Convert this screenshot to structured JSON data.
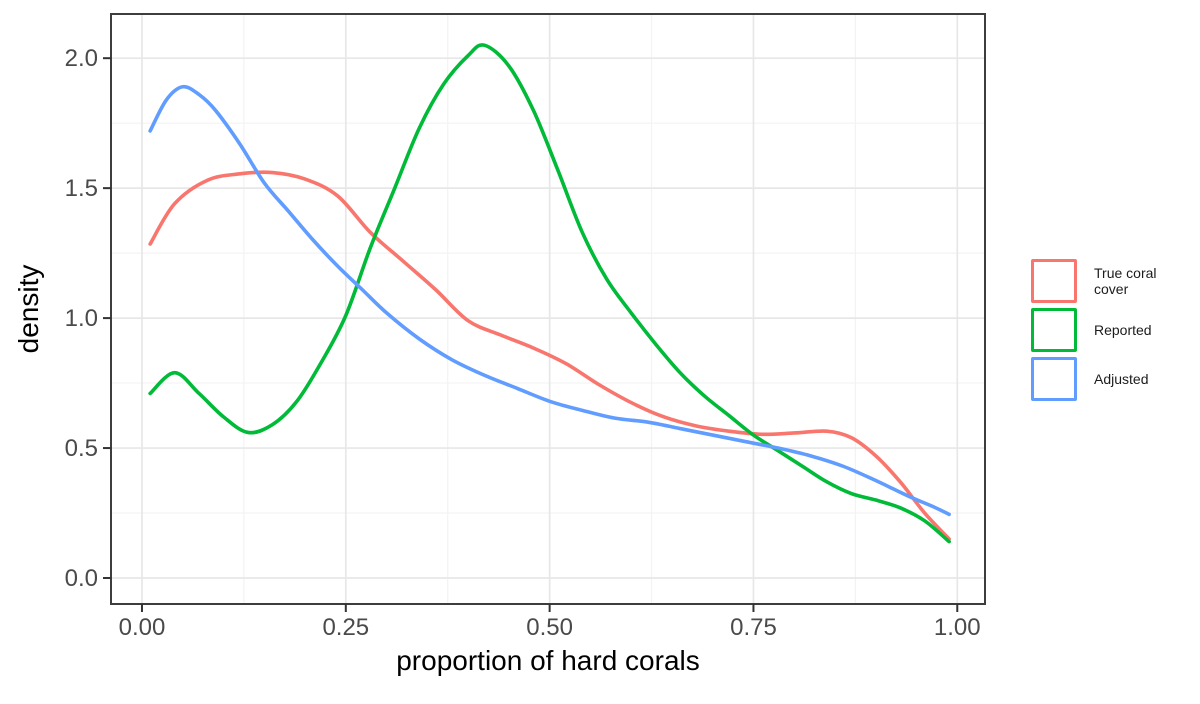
{
  "figure": {
    "background": "#ffffff",
    "panel": {
      "background": "#ffffff",
      "border_color": "#3d3d3d",
      "grid_major_color": "#e7e7e7",
      "grid_minor_color": "#f3f3f3",
      "tick_color": "#333333",
      "tick_label_color": "#4a4a4a",
      "axis_title_color": "#000000"
    }
  },
  "chart_data": {
    "type": "line",
    "subtype": "kernel-density",
    "title": "",
    "xlabel": "proportion of hard corals",
    "ylabel": "density",
    "xlim": [
      -0.038,
      1.034
    ],
    "ylim": [
      -0.1,
      2.17
    ],
    "grid": true,
    "legend_position": "right",
    "x_ticks": {
      "values": [
        0,
        0.25,
        0.5,
        0.75,
        1
      ],
      "labels": [
        "0.00",
        "0.25",
        "0.50",
        "0.75",
        "1.00"
      ]
    },
    "y_ticks": {
      "values": [
        0,
        0.5,
        1,
        1.5,
        2
      ],
      "labels": [
        "0.0",
        "0.5",
        "1.0",
        "1.5",
        "2.0"
      ]
    },
    "x_minor": [
      0.125,
      0.375,
      0.625,
      0.875
    ],
    "y_minor": [
      0.25,
      0.75,
      1.25,
      1.75
    ],
    "series": [
      {
        "name": "True coral cover",
        "color": "#F8766D",
        "points": [
          [
            0.01,
            1.285
          ],
          [
            0.04,
            1.44
          ],
          [
            0.08,
            1.53
          ],
          [
            0.12,
            1.555
          ],
          [
            0.16,
            1.56
          ],
          [
            0.2,
            1.535
          ],
          [
            0.24,
            1.47
          ],
          [
            0.28,
            1.33
          ],
          [
            0.32,
            1.22
          ],
          [
            0.36,
            1.11
          ],
          [
            0.4,
            0.99
          ],
          [
            0.44,
            0.935
          ],
          [
            0.48,
            0.885
          ],
          [
            0.52,
            0.825
          ],
          [
            0.56,
            0.745
          ],
          [
            0.6,
            0.675
          ],
          [
            0.64,
            0.62
          ],
          [
            0.68,
            0.585
          ],
          [
            0.72,
            0.565
          ],
          [
            0.76,
            0.553
          ],
          [
            0.8,
            0.558
          ],
          [
            0.84,
            0.565
          ],
          [
            0.87,
            0.54
          ],
          [
            0.9,
            0.47
          ],
          [
            0.93,
            0.37
          ],
          [
            0.96,
            0.25
          ],
          [
            0.99,
            0.15
          ]
        ]
      },
      {
        "name": "Reported",
        "color": "#00BA38",
        "points": [
          [
            0.01,
            0.71
          ],
          [
            0.04,
            0.79
          ],
          [
            0.07,
            0.71
          ],
          [
            0.1,
            0.62
          ],
          [
            0.13,
            0.56
          ],
          [
            0.16,
            0.59
          ],
          [
            0.19,
            0.68
          ],
          [
            0.22,
            0.83
          ],
          [
            0.25,
            1.01
          ],
          [
            0.28,
            1.27
          ],
          [
            0.31,
            1.5
          ],
          [
            0.34,
            1.73
          ],
          [
            0.37,
            1.9
          ],
          [
            0.4,
            2.01
          ],
          [
            0.42,
            2.05
          ],
          [
            0.45,
            1.97
          ],
          [
            0.48,
            1.8
          ],
          [
            0.51,
            1.57
          ],
          [
            0.54,
            1.33
          ],
          [
            0.57,
            1.15
          ],
          [
            0.6,
            1.02
          ],
          [
            0.63,
            0.9
          ],
          [
            0.66,
            0.79
          ],
          [
            0.69,
            0.7
          ],
          [
            0.72,
            0.625
          ],
          [
            0.75,
            0.55
          ],
          [
            0.78,
            0.49
          ],
          [
            0.81,
            0.43
          ],
          [
            0.84,
            0.37
          ],
          [
            0.87,
            0.325
          ],
          [
            0.9,
            0.3
          ],
          [
            0.93,
            0.27
          ],
          [
            0.96,
            0.22
          ],
          [
            0.99,
            0.14
          ]
        ]
      },
      {
        "name": "Adjusted",
        "color": "#619CFF",
        "points": [
          [
            0.01,
            1.72
          ],
          [
            0.03,
            1.84
          ],
          [
            0.05,
            1.89
          ],
          [
            0.07,
            1.86
          ],
          [
            0.09,
            1.8
          ],
          [
            0.12,
            1.67
          ],
          [
            0.15,
            1.52
          ],
          [
            0.18,
            1.41
          ],
          [
            0.21,
            1.3
          ],
          [
            0.24,
            1.2
          ],
          [
            0.27,
            1.11
          ],
          [
            0.3,
            1.02
          ],
          [
            0.34,
            0.92
          ],
          [
            0.38,
            0.84
          ],
          [
            0.42,
            0.78
          ],
          [
            0.46,
            0.73
          ],
          [
            0.5,
            0.68
          ],
          [
            0.54,
            0.645
          ],
          [
            0.58,
            0.615
          ],
          [
            0.62,
            0.6
          ],
          [
            0.66,
            0.575
          ],
          [
            0.7,
            0.55
          ],
          [
            0.74,
            0.525
          ],
          [
            0.78,
            0.5
          ],
          [
            0.82,
            0.47
          ],
          [
            0.86,
            0.43
          ],
          [
            0.9,
            0.375
          ],
          [
            0.94,
            0.315
          ],
          [
            0.97,
            0.275
          ],
          [
            0.99,
            0.245
          ]
        ]
      }
    ]
  },
  "legend": {
    "items": [
      {
        "label": "True coral cover",
        "color": "#F8766D"
      },
      {
        "label": "Reported",
        "color": "#00BA38"
      },
      {
        "label": "Adjusted",
        "color": "#619CFF"
      }
    ]
  }
}
